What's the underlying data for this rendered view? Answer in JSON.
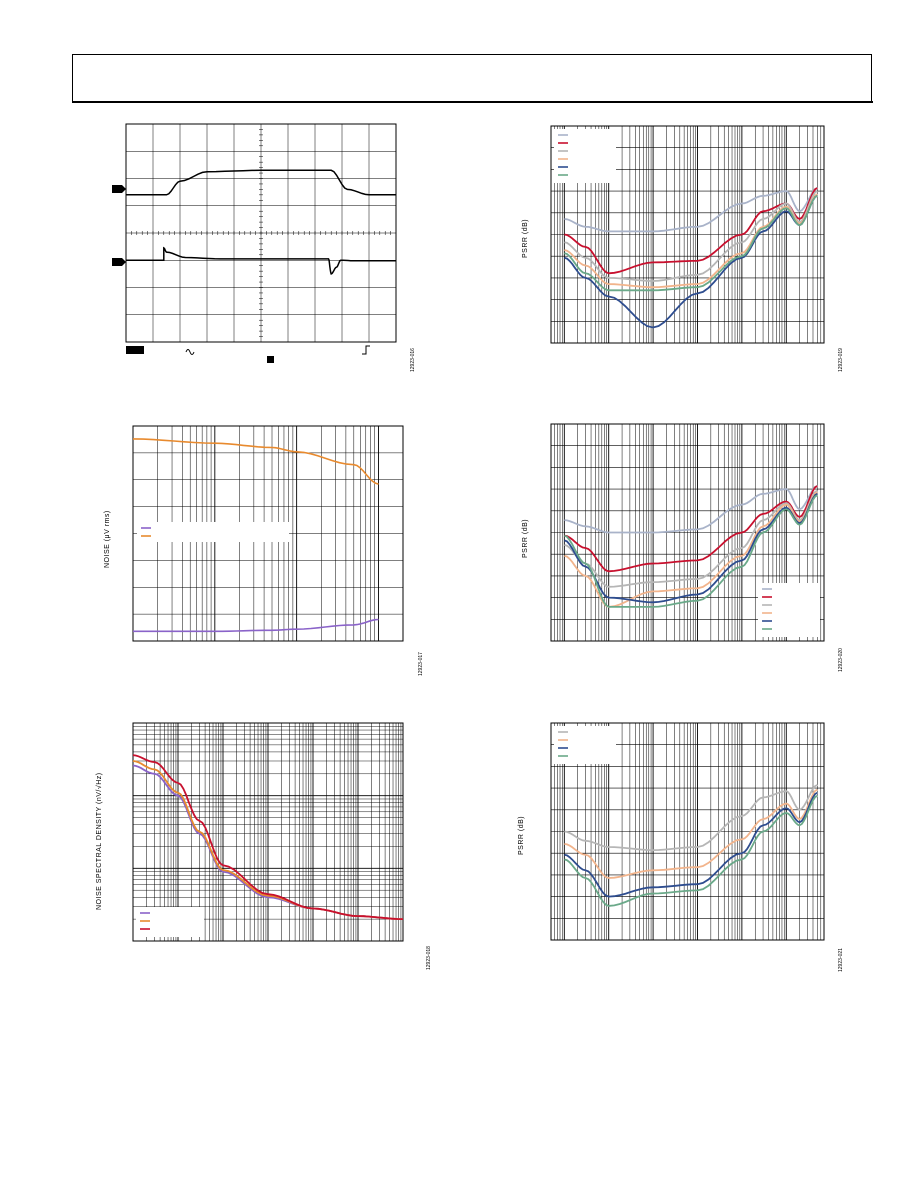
{
  "page": {
    "figure_ids": [
      "12923-016",
      "12923-017",
      "12923-018",
      "12923-019",
      "12923-020",
      "12923-021"
    ]
  },
  "chart_data": [
    {
      "id": "scope",
      "type": "line",
      "title": "",
      "xlabel": "",
      "ylabel": "",
      "grid": true,
      "grid_divisions": [
        10,
        8
      ],
      "series": [
        {
          "x": [
            0,
            1.5,
            2.0,
            3.0,
            5.0,
            7.6,
            8.2,
            9.0,
            10.0
          ],
          "y": [
            1.4,
            1.4,
            1.9,
            2.25,
            2.3,
            2.3,
            1.6,
            1.4,
            1.4
          ]
        },
        {
          "x": [
            0,
            1.4,
            1.4,
            1.5,
            2.2,
            3.5,
            7.5,
            7.6,
            7.8,
            7.95,
            8.5,
            10.0
          ],
          "y": [
            -1.0,
            -1.0,
            -0.55,
            -0.7,
            -0.9,
            -0.95,
            -0.95,
            -1.5,
            -1.25,
            -1.0,
            -1.02,
            -1.02
          ]
        }
      ]
    },
    {
      "id": "noise_rms",
      "type": "line",
      "ylabel": "NOISE (μV rms)",
      "x_log": true,
      "grid": true,
      "legend": "middle-left",
      "colors": [
        "#8a63c9",
        "#e88a2e"
      ],
      "series": [
        {
          "x": [
            1,
            10,
            50,
            100,
            500,
            1000
          ],
          "y": [
            0.45,
            0.45,
            0.5,
            0.55,
            0.75,
            1.0
          ]
        },
        {
          "x": [
            1,
            10,
            50,
            100,
            500,
            1000
          ],
          "y": [
            9.4,
            9.2,
            9.0,
            8.8,
            8.2,
            7.3
          ]
        }
      ]
    },
    {
      "id": "nsd",
      "type": "line",
      "ylabel": "NOISE SPECTRAL DENSITY (nV/√Hz)",
      "x_log": true,
      "y_log": true,
      "grid": true,
      "legend": "bottom-left",
      "colors": [
        "#8a63c9",
        "#e88a2e",
        "#c8102e"
      ],
      "series": [
        {
          "x": [
            1,
            3,
            10,
            30,
            100,
            1000,
            10000,
            100000,
            1000000
          ],
          "y": [
            2600,
            2000,
            1000,
            300,
            90,
            40,
            28,
            22,
            20
          ]
        },
        {
          "x": [
            1,
            3,
            10,
            30,
            100,
            1000,
            10000,
            100000,
            1000000
          ],
          "y": [
            3000,
            2300,
            1100,
            320,
            95,
            42,
            28,
            22,
            20
          ]
        },
        {
          "x": [
            1,
            3,
            10,
            30,
            100,
            1000,
            10000,
            100000,
            1000000
          ],
          "y": [
            3600,
            2900,
            1500,
            450,
            110,
            44,
            28,
            22,
            20
          ]
        }
      ]
    },
    {
      "id": "psrr1",
      "type": "line",
      "ylabel": "PSRR (dB)",
      "x_log": true,
      "grid": true,
      "legend": "top-left",
      "colors": [
        "#a9b3c9",
        "#c8102e",
        "#b6b6b6",
        "#f2b48c",
        "#2e4d8f",
        "#6aa989"
      ],
      "series": [
        {
          "x": [
            10,
            30,
            100,
            1000,
            10000,
            100000,
            300000,
            1000000,
            2000000,
            5000000
          ],
          "y": [
            -60,
            -65,
            -68,
            -68,
            -65,
            -50,
            -45,
            -42,
            -55,
            -40
          ]
        },
        {
          "x": [
            10,
            30,
            100,
            1000,
            10000,
            100000,
            300000,
            1000000,
            2000000,
            5000000
          ],
          "y": [
            -70,
            -78,
            -95,
            -88,
            -87,
            -70,
            -55,
            -50,
            -60,
            -40
          ]
        },
        {
          "x": [
            10,
            30,
            100,
            1000,
            10000,
            100000,
            300000,
            1000000,
            2000000,
            5000000
          ],
          "y": [
            -75,
            -85,
            -98,
            -100,
            -96,
            -75,
            -60,
            -50,
            -62,
            -42
          ]
        },
        {
          "x": [
            10,
            30,
            100,
            1000,
            10000,
            100000,
            300000,
            1000000,
            2000000,
            5000000
          ],
          "y": [
            -80,
            -90,
            -102,
            -104,
            -102,
            -82,
            -65,
            -52,
            -63,
            -44
          ]
        },
        {
          "x": [
            10,
            30,
            100,
            1000,
            10000,
            100000,
            300000,
            1000000,
            2000000,
            5000000
          ],
          "y": [
            -85,
            -98,
            -110,
            -130,
            -108,
            -85,
            -68,
            -55,
            -64,
            -45
          ]
        },
        {
          "x": [
            10,
            30,
            100,
            1000,
            10000,
            100000,
            300000,
            1000000,
            2000000,
            5000000
          ],
          "y": [
            -82,
            -95,
            -106,
            -106,
            -104,
            -84,
            -66,
            -53,
            -64,
            -45
          ]
        }
      ]
    },
    {
      "id": "psrr2",
      "type": "line",
      "ylabel": "PSRR (dB)",
      "x_log": true,
      "grid": true,
      "legend": "bottom-right",
      "colors": [
        "#a9b3c9",
        "#c8102e",
        "#b6b6b6",
        "#f2b48c",
        "#2e4d8f",
        "#6aa989"
      ],
      "series": [
        {
          "x": [
            10,
            30,
            100,
            1000,
            10000,
            100000,
            300000,
            1000000,
            2000000,
            5000000
          ],
          "y": [
            -62,
            -66,
            -70,
            -70,
            -68,
            -52,
            -45,
            -42,
            -55,
            -40
          ]
        },
        {
          "x": [
            10,
            30,
            100,
            1000,
            10000,
            100000,
            300000,
            1000000,
            2000000,
            5000000
          ],
          "y": [
            -72,
            -80,
            -95,
            -90,
            -88,
            -70,
            -58,
            -50,
            -60,
            -40
          ]
        },
        {
          "x": [
            10,
            30,
            100,
            1000,
            10000,
            100000,
            300000,
            1000000,
            2000000,
            5000000
          ],
          "y": [
            -78,
            -90,
            -105,
            -102,
            -100,
            -80,
            -62,
            -51,
            -62,
            -43
          ]
        },
        {
          "x": [
            10,
            30,
            100,
            1000,
            10000,
            100000,
            300000,
            1000000,
            2000000,
            5000000
          ],
          "y": [
            -85,
            -98,
            -118,
            -108,
            -106,
            -85,
            -66,
            -52,
            -63,
            -44
          ]
        },
        {
          "x": [
            10,
            30,
            100,
            1000,
            10000,
            100000,
            300000,
            1000000,
            2000000,
            5000000
          ],
          "y": [
            -75,
            -92,
            -112,
            -115,
            -110,
            -88,
            -68,
            -54,
            -64,
            -45
          ]
        },
        {
          "x": [
            10,
            30,
            100,
            1000,
            10000,
            100000,
            300000,
            1000000,
            2000000,
            5000000
          ],
          "y": [
            -72,
            -90,
            -118,
            -118,
            -114,
            -92,
            -70,
            -55,
            -65,
            -46
          ]
        }
      ]
    },
    {
      "id": "psrr3",
      "type": "line",
      "ylabel": "PSRR (dB)",
      "x_log": true,
      "grid": true,
      "legend": "top-left",
      "colors": [
        "#b6b6b6",
        "#f2b48c",
        "#2e4d8f",
        "#6aa989"
      ],
      "series": [
        {
          "x": [
            10,
            30,
            100,
            1000,
            10000,
            100000,
            300000,
            1000000,
            2000000,
            5000000
          ],
          "y": [
            -70,
            -76,
            -80,
            -82,
            -80,
            -60,
            -48,
            -44,
            -56,
            -40
          ]
        },
        {
          "x": [
            10,
            30,
            100,
            1000,
            10000,
            100000,
            300000,
            1000000,
            2000000,
            5000000
          ],
          "y": [
            -78,
            -85,
            -100,
            -95,
            -93,
            -75,
            -62,
            -52,
            -62,
            -43
          ]
        },
        {
          "x": [
            10,
            30,
            100,
            1000,
            10000,
            100000,
            300000,
            1000000,
            2000000,
            5000000
          ],
          "y": [
            -85,
            -95,
            -112,
            -106,
            -104,
            -84,
            -66,
            -55,
            -64,
            -45
          ]
        },
        {
          "x": [
            10,
            30,
            100,
            1000,
            10000,
            100000,
            300000,
            1000000,
            2000000,
            5000000
          ],
          "y": [
            -88,
            -100,
            -118,
            -110,
            -108,
            -88,
            -70,
            -58,
            -66,
            -47
          ]
        }
      ]
    }
  ]
}
